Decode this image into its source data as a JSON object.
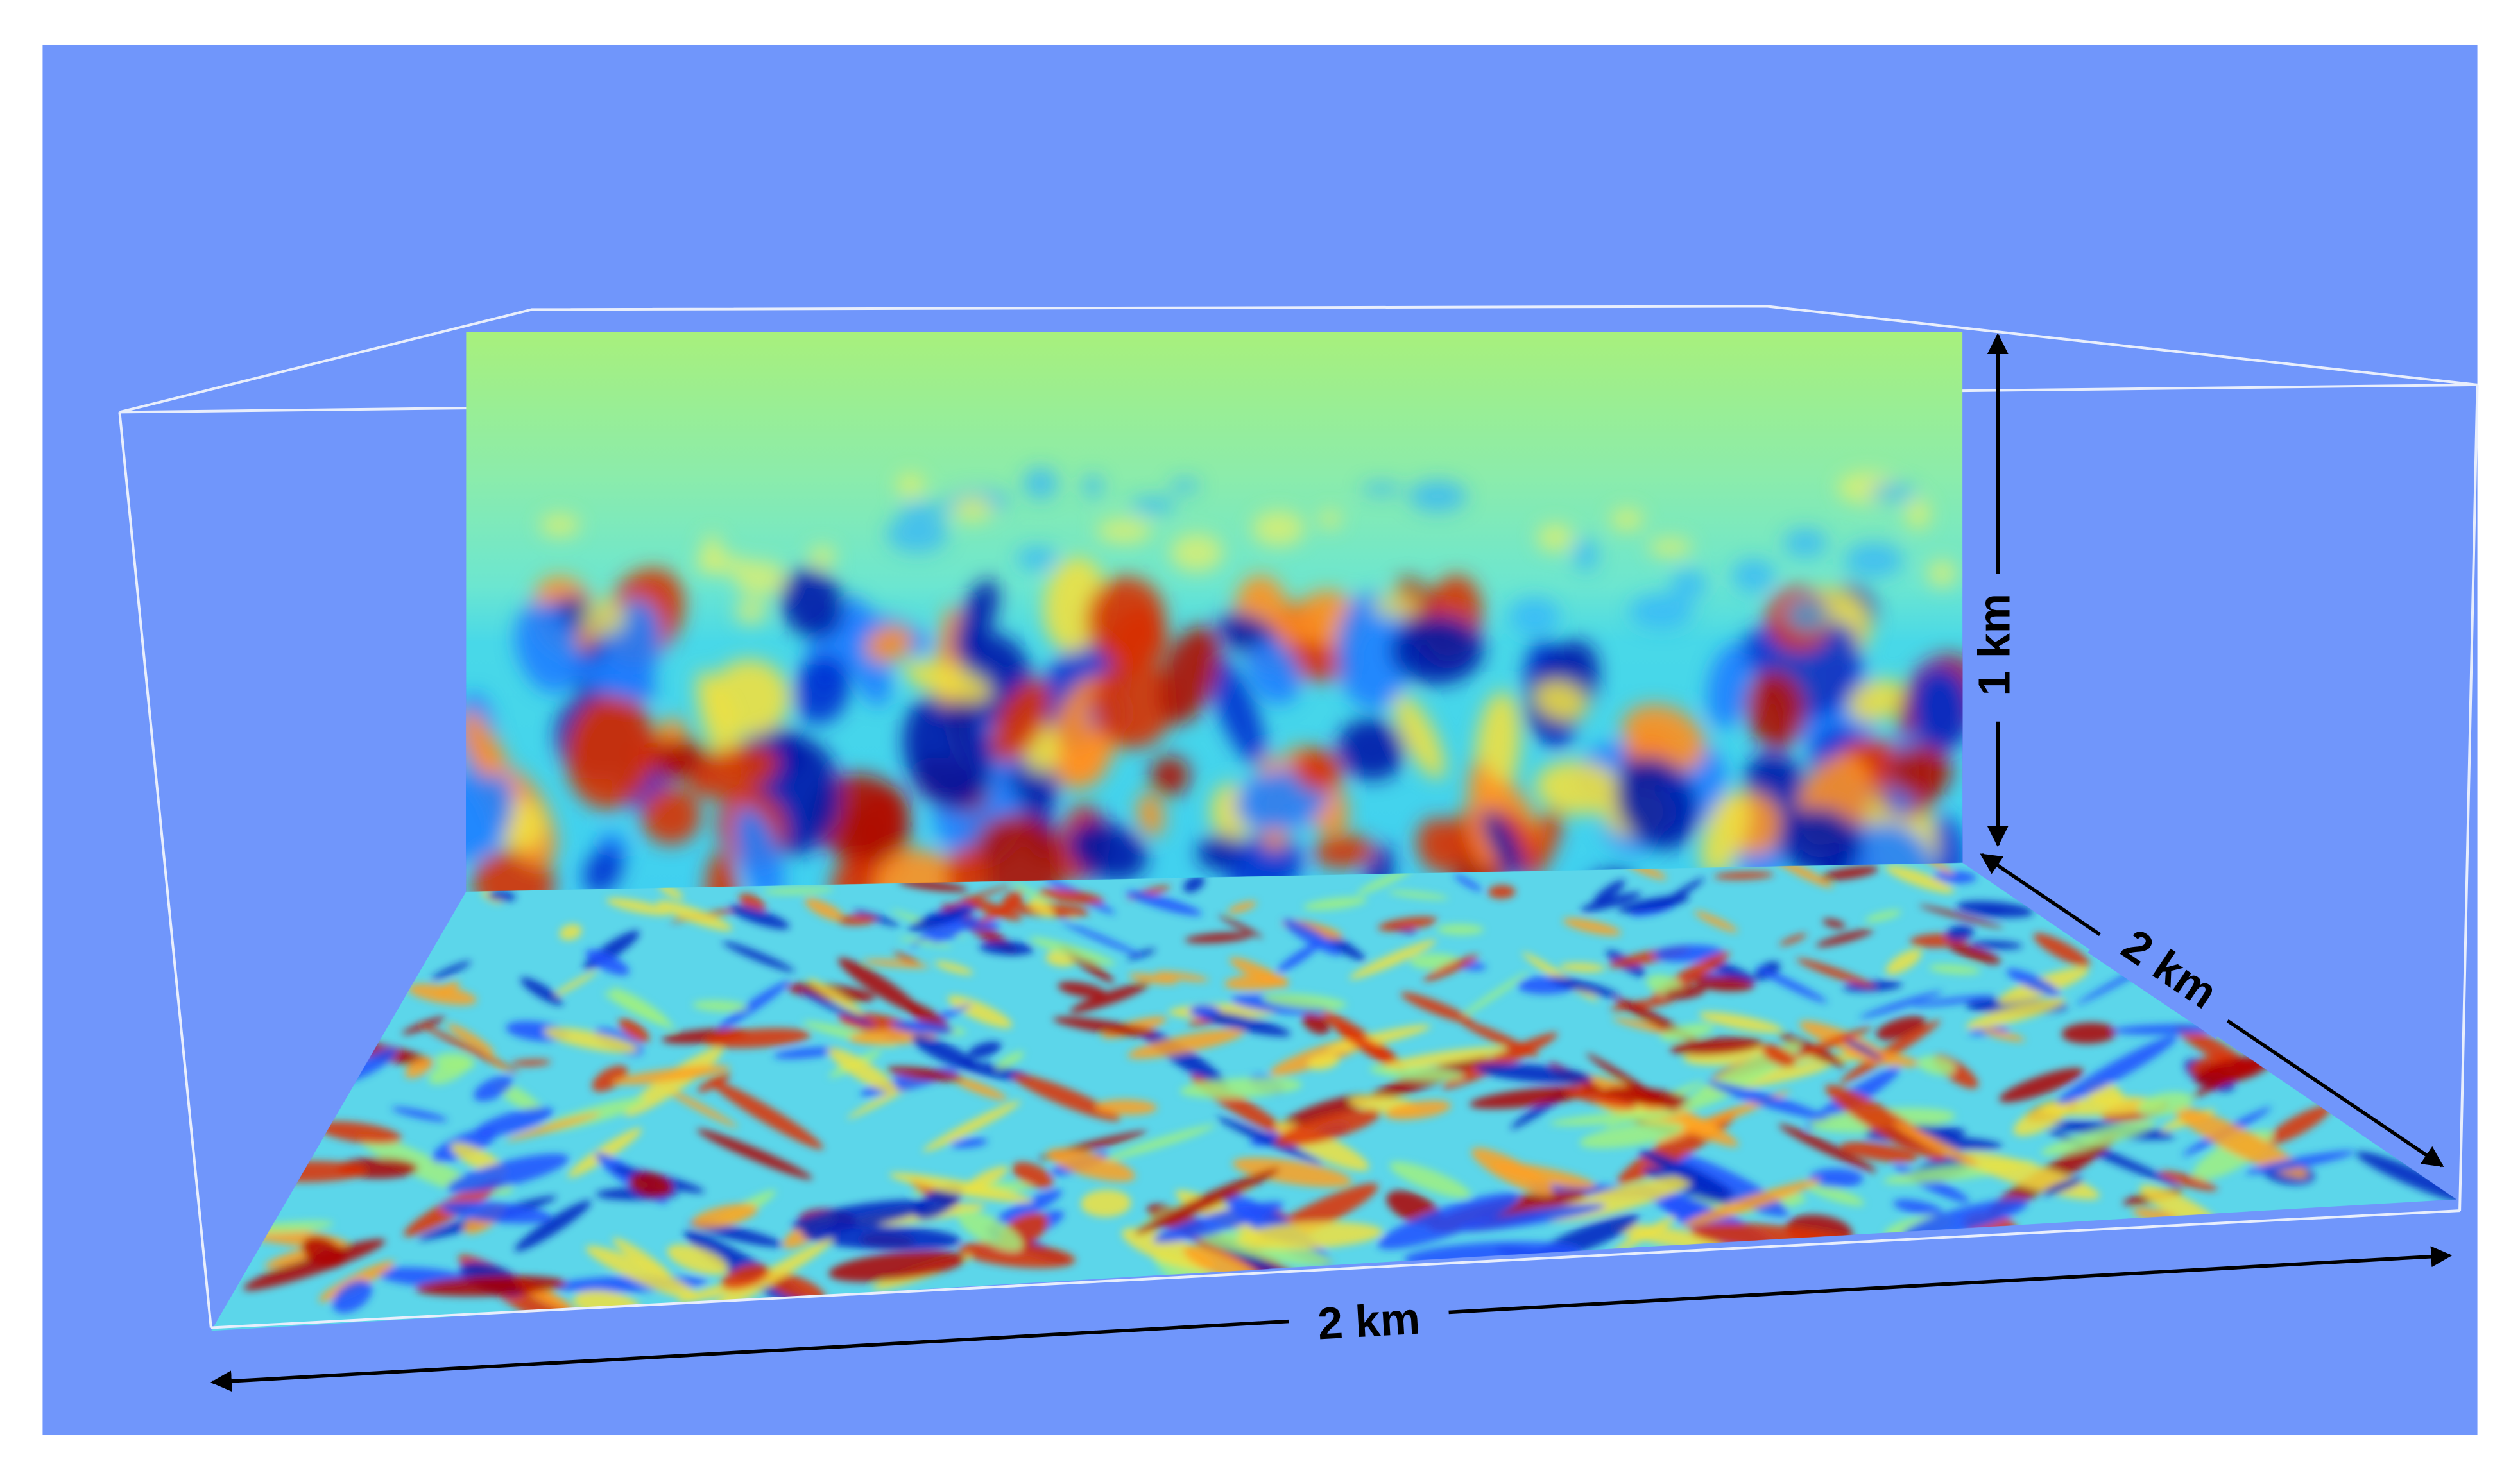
{
  "labels": {
    "height": "1 km",
    "depth": "2 km",
    "width": "2 km"
  }
}
